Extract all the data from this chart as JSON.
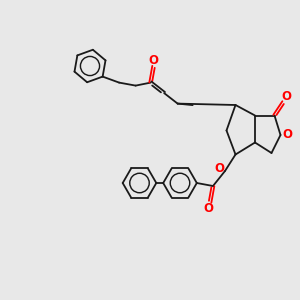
{
  "background_color": "#e8e8e8",
  "bond_color": "#1a1a1a",
  "oxygen_color": "#ff0000",
  "line_width": 1.3,
  "figsize": [
    3.0,
    3.0
  ],
  "dpi": 100,
  "xlim": [
    0,
    10
  ],
  "ylim": [
    0,
    10
  ]
}
